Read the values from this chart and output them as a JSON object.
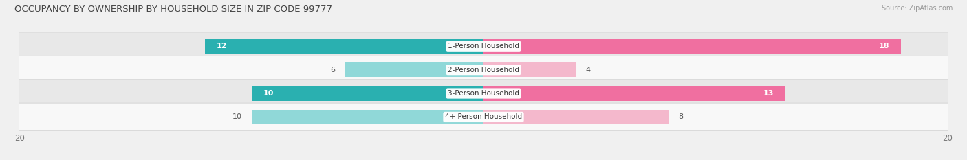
{
  "title": "OCCUPANCY BY OWNERSHIP BY HOUSEHOLD SIZE IN ZIP CODE 99777",
  "source": "Source: ZipAtlas.com",
  "categories": [
    "1-Person Household",
    "2-Person Household",
    "3-Person Household",
    "4+ Person Household"
  ],
  "owner_values": [
    12,
    6,
    10,
    10
  ],
  "renter_values": [
    18,
    4,
    13,
    8
  ],
  "owner_color_dark": "#2ab0b0",
  "renter_color_dark": "#f06fa0",
  "owner_color_light": "#90d8d8",
  "renter_color_light": "#f4b8cc",
  "axis_max": 20,
  "bar_height": 0.62,
  "bg_color": "#f0f0f0",
  "row_bg_light": "#f8f8f8",
  "row_bg_dark": "#e8e8e8",
  "title_fontsize": 9.5,
  "label_fontsize": 7.5,
  "value_fontsize": 8,
  "tick_fontsize": 8.5,
  "source_fontsize": 7,
  "dark_rows": [
    0,
    2
  ],
  "light_rows": [
    1,
    3
  ]
}
